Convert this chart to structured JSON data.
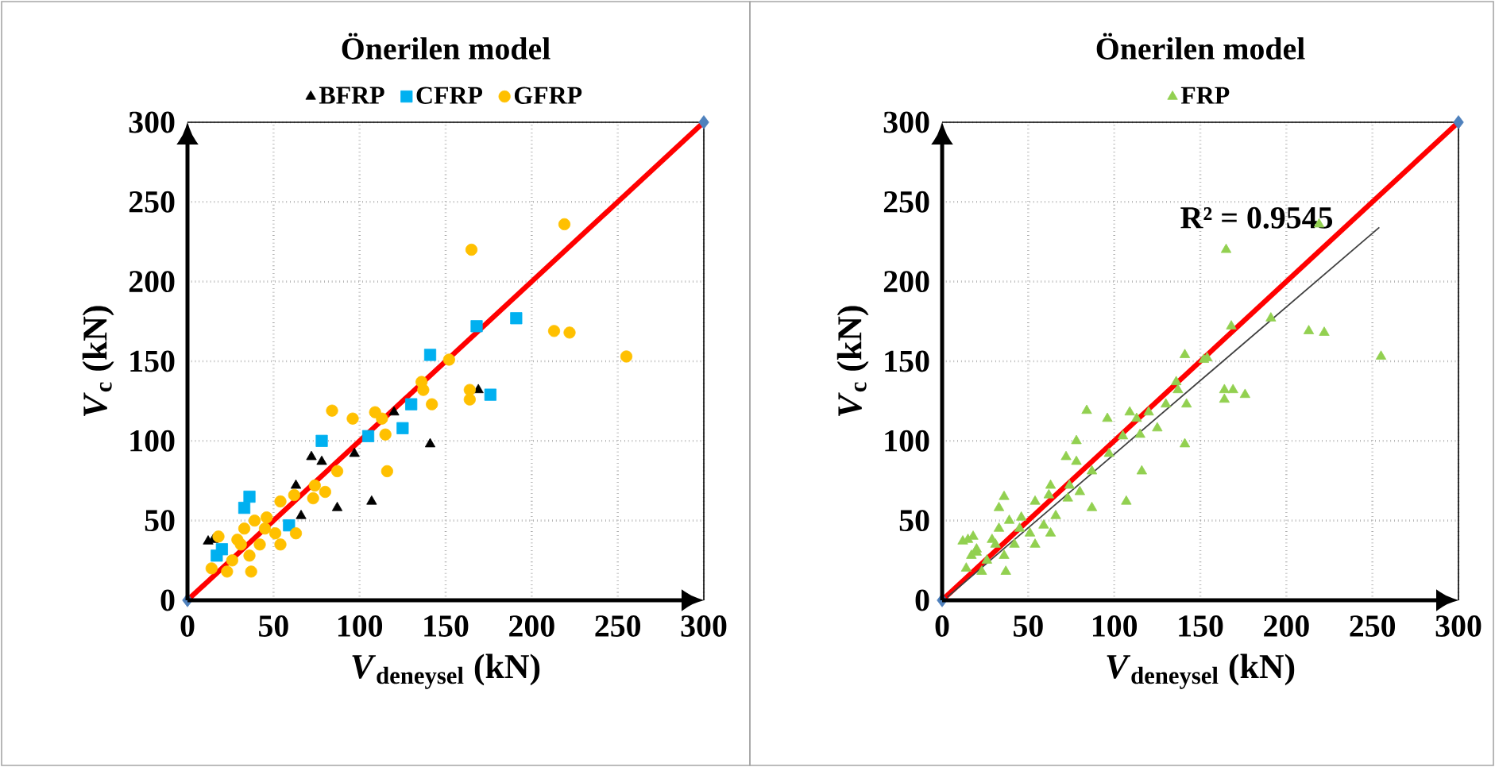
{
  "chart_data": [
    {
      "type": "scatter",
      "title": "Önerilen model",
      "xlabel": "*V*$_{deneysel}$ (kN)",
      "ylabel": "*V*$_{c}$ (kN)",
      "xlim": [
        0,
        300
      ],
      "ylim": [
        0,
        300
      ],
      "xticks": [
        0,
        50,
        100,
        150,
        200,
        250,
        300
      ],
      "yticks": [
        0,
        50,
        100,
        150,
        200,
        250,
        300
      ],
      "grid": true,
      "legend": "top",
      "series": [
        {
          "type": "line",
          "color": "#ff0000",
          "marker": "none",
          "x": [
            0,
            300
          ],
          "values": [
            0,
            300
          ]
        },
        {
          "type": "scatter",
          "color": "#4f81bd",
          "marker": "diamond",
          "x": [
            0,
            300
          ],
          "values": [
            0,
            300
          ]
        },
        {
          "name": "BFRP",
          "color": "#000000",
          "marker": "triangle",
          "x": [
            12,
            66,
            72,
            78,
            87,
            97,
            107,
            120,
            141,
            169,
            63,
            20,
            15
          ],
          "values": [
            37,
            53,
            90,
            87,
            58,
            92,
            62,
            118,
            98,
            132,
            72,
            null,
            38
          ]
        },
        {
          "name": "CFRP",
          "color": "#00b0f0",
          "marker": "square",
          "x": [
            36,
            33,
            17,
            20,
            59,
            78,
            105,
            125,
            130,
            141,
            168,
            191,
            176
          ],
          "values": [
            65,
            58,
            28,
            32,
            47,
            100,
            103,
            108,
            123,
            154,
            172,
            177,
            129
          ]
        },
        {
          "name": "GFRP",
          "color": "#ffc000",
          "marker": "circle",
          "x": [
            219,
            165,
            213,
            222,
            255,
            154,
            152,
            136,
            137,
            142,
            164,
            164,
            84,
            96,
            109,
            113,
            115,
            116,
            87,
            74,
            80,
            73,
            62,
            54,
            63,
            18,
            14,
            37,
            33,
            39,
            45,
            51,
            31,
            42,
            54,
            26,
            36,
            23,
            46,
            29
          ],
          "values": [
            236,
            220,
            169,
            168,
            153,
            null,
            151,
            137,
            132,
            123,
            132,
            126,
            119,
            114,
            118,
            114,
            104,
            81,
            81,
            72,
            68,
            64,
            66,
            62,
            42,
            40,
            20,
            18,
            45,
            50,
            45,
            42,
            35,
            35,
            35,
            25,
            28,
            18,
            52,
            38
          ]
        }
      ]
    },
    {
      "type": "scatter",
      "title": "Önerilen model",
      "xlabel": "*V*$_{deneysel}$ (kN)",
      "ylabel": "*V*$_{c}$ (kN)",
      "xlim": [
        0,
        300
      ],
      "ylim": [
        0,
        300
      ],
      "xticks": [
        0,
        50,
        100,
        150,
        200,
        250,
        300
      ],
      "yticks": [
        0,
        50,
        100,
        150,
        200,
        250,
        300
      ],
      "grid": true,
      "legend": "top",
      "annotations": [
        "R² = 0.9545"
      ],
      "series": [
        {
          "name": "FRP",
          "color": "#92d050",
          "marker": "triangle",
          "x": [
            12,
            66,
            72,
            78,
            87,
            97,
            107,
            120,
            141,
            169,
            63,
            20,
            15,
            36,
            33,
            17,
            20,
            59,
            78,
            105,
            125,
            130,
            141,
            168,
            191,
            176,
            219,
            165,
            213,
            222,
            255,
            154,
            152,
            136,
            137,
            142,
            164,
            164,
            84,
            96,
            109,
            113,
            115,
            116,
            87,
            74,
            80,
            73,
            62,
            54,
            63,
            18,
            14,
            37,
            33,
            39,
            45,
            51,
            31,
            42,
            54,
            26,
            36,
            23,
            46,
            29
          ],
          "values": [
            37,
            53,
            90,
            87,
            58,
            92,
            62,
            118,
            98,
            132,
            72,
            30,
            38,
            65,
            58,
            28,
            32,
            47,
            100,
            103,
            108,
            123,
            154,
            172,
            177,
            129,
            236,
            220,
            169,
            168,
            153,
            152,
            151,
            137,
            132,
            123,
            132,
            126,
            119,
            114,
            118,
            114,
            104,
            81,
            81,
            72,
            68,
            64,
            66,
            62,
            42,
            40,
            20,
            18,
            45,
            50,
            45,
            42,
            35,
            35,
            35,
            25,
            28,
            18,
            52,
            38
          ]
        },
        {
          "type": "line",
          "color": "#ff0000",
          "marker": "none",
          "x": [
            0,
            300
          ],
          "values": [
            0,
            300
          ]
        },
        {
          "type": "line",
          "color": "#404040",
          "marker": "none",
          "x": [
            3,
            254
          ],
          "values": [
            2,
            234
          ]
        },
        {
          "type": "scatter",
          "color": "#4f81bd",
          "marker": "diamond",
          "x": [
            0,
            300
          ],
          "values": [
            0,
            300
          ]
        }
      ]
    }
  ]
}
